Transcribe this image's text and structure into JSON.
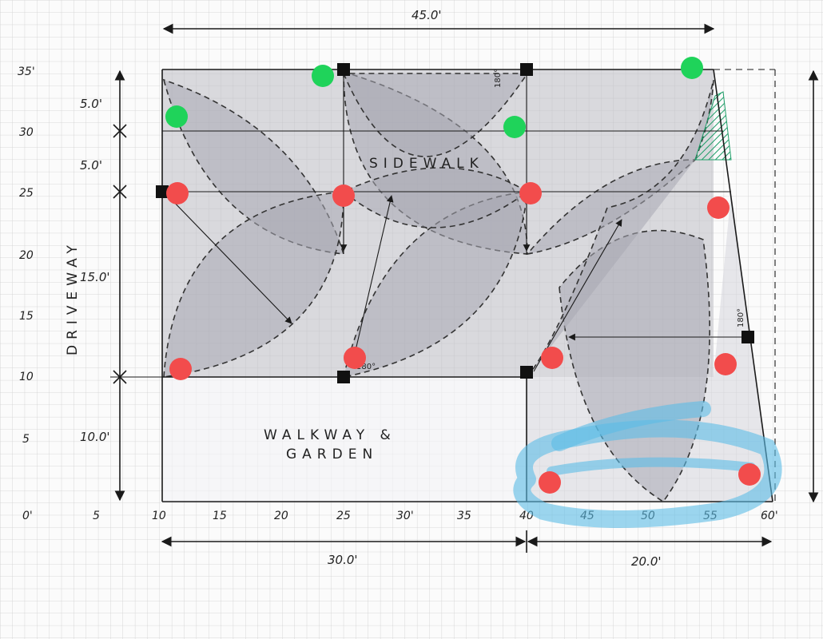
{
  "diagram": {
    "top_dimension": "45.0'",
    "bottom_left_dimension": "30.0'",
    "bottom_right_dimension": "20.0'",
    "left_dimensions": [
      "5.0'",
      "5.0'",
      "15.0'",
      "10.0'"
    ],
    "y_ticks": [
      "35'",
      "30",
      "25",
      "20",
      "15",
      "10",
      "5",
      "0'"
    ],
    "x_ticks": [
      "0'",
      "5",
      "10",
      "15",
      "20",
      "25",
      "30'",
      "35",
      "40",
      "45",
      "50",
      "55",
      "60'"
    ],
    "labels": {
      "driveway": "DRIVEWAY",
      "sidewalk": "SIDEWALK",
      "walkway_line1": "WALKWAY &",
      "walkway_line2": "GARDEN"
    },
    "angle_labels": [
      "180°",
      "180°",
      "180°"
    ],
    "marker_colors": {
      "green": "#1fd35a",
      "red": "#f24c4c",
      "highlight": "#5bbde6",
      "hatch": "#1e9e68"
    }
  }
}
